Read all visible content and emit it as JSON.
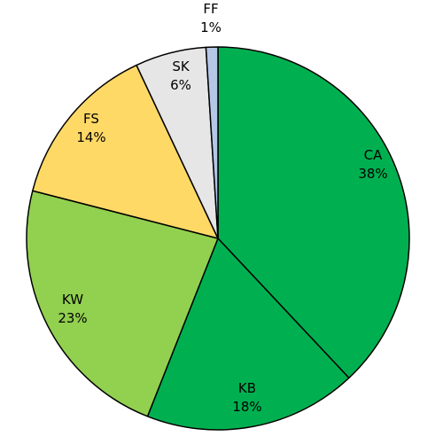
{
  "chart_data": {
    "type": "pie",
    "title": "",
    "start_angle_deg": 0,
    "direction": "clockwise",
    "slices": [
      {
        "label": "CA",
        "value_text": "38%",
        "value": 38,
        "color": "#00B050"
      },
      {
        "label": "KB",
        "value_text": "18%",
        "value": 18,
        "color": "#00B050"
      },
      {
        "label": "KW",
        "value_text": "23%",
        "value": 23,
        "color": "#92D050"
      },
      {
        "label": "FS",
        "value_text": "14%",
        "value": 14,
        "color": "#FFD966"
      },
      {
        "label": "SK",
        "value_text": "6%",
        "value": 6,
        "color": "#E7E6E6"
      },
      {
        "label": "FF",
        "value_text": "1%",
        "value": 1,
        "color": "#B4C7E7"
      }
    ],
    "legend": "none",
    "border_color": "#000000"
  }
}
